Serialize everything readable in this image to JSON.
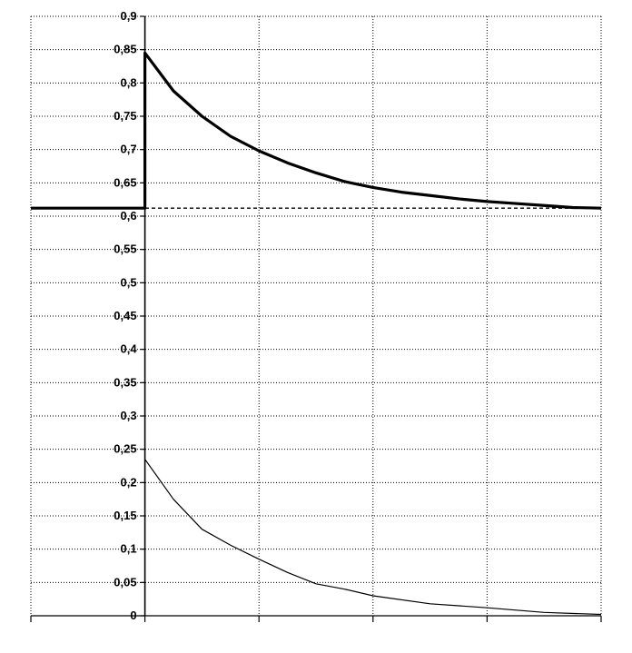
{
  "chart_data": {
    "type": "line",
    "title": "",
    "xlabel": "",
    "ylabel": "",
    "xlim": [
      -1,
      4
    ],
    "ylim": [
      0,
      0.9
    ],
    "x_ticks": [
      -1,
      0,
      1,
      2,
      3,
      4
    ],
    "y_ticks": [
      0,
      0.05,
      0.1,
      0.15,
      0.2,
      0.25,
      0.3,
      0.35,
      0.4,
      0.45,
      0.5,
      0.55,
      0.6,
      0.65,
      0.7,
      0.75,
      0.8,
      0.85,
      0.9
    ],
    "y_tick_labels": [
      "0",
      "0,05",
      "0,1",
      "0,15",
      "0,2",
      "0,25",
      "0,3",
      "0,35",
      "0,4",
      "0,45",
      "0,5",
      "0,55",
      "0,6",
      "0,65",
      "0,7",
      "0,75",
      "0,8",
      "0,85",
      "0,9"
    ],
    "grid": true,
    "legend": "none",
    "series": [
      {
        "style": "thick",
        "x": [
          -1,
          0,
          0,
          0.25,
          0.5,
          0.75,
          1,
          1.25,
          1.5,
          1.75,
          2,
          2.25,
          2.5,
          2.75,
          3,
          3.25,
          3.5,
          3.75,
          4
        ],
        "y": [
          0.612,
          0.612,
          0.845,
          0.788,
          0.75,
          0.72,
          0.698,
          0.68,
          0.665,
          0.652,
          0.643,
          0.636,
          0.631,
          0.626,
          0.622,
          0.619,
          0.616,
          0.613,
          0.612
        ]
      },
      {
        "style": "dashed",
        "x": [
          -1,
          4
        ],
        "y": [
          0.612,
          0.612
        ]
      },
      {
        "style": "thin",
        "x": [
          0,
          0.25,
          0.5,
          0.75,
          1,
          1.25,
          1.5,
          1.75,
          2,
          2.5,
          3,
          3.5,
          4
        ],
        "y": [
          0.235,
          0.175,
          0.13,
          0.106,
          0.085,
          0.065,
          0.048,
          0.04,
          0.03,
          0.018,
          0.012,
          0.005,
          0.002
        ]
      }
    ]
  }
}
